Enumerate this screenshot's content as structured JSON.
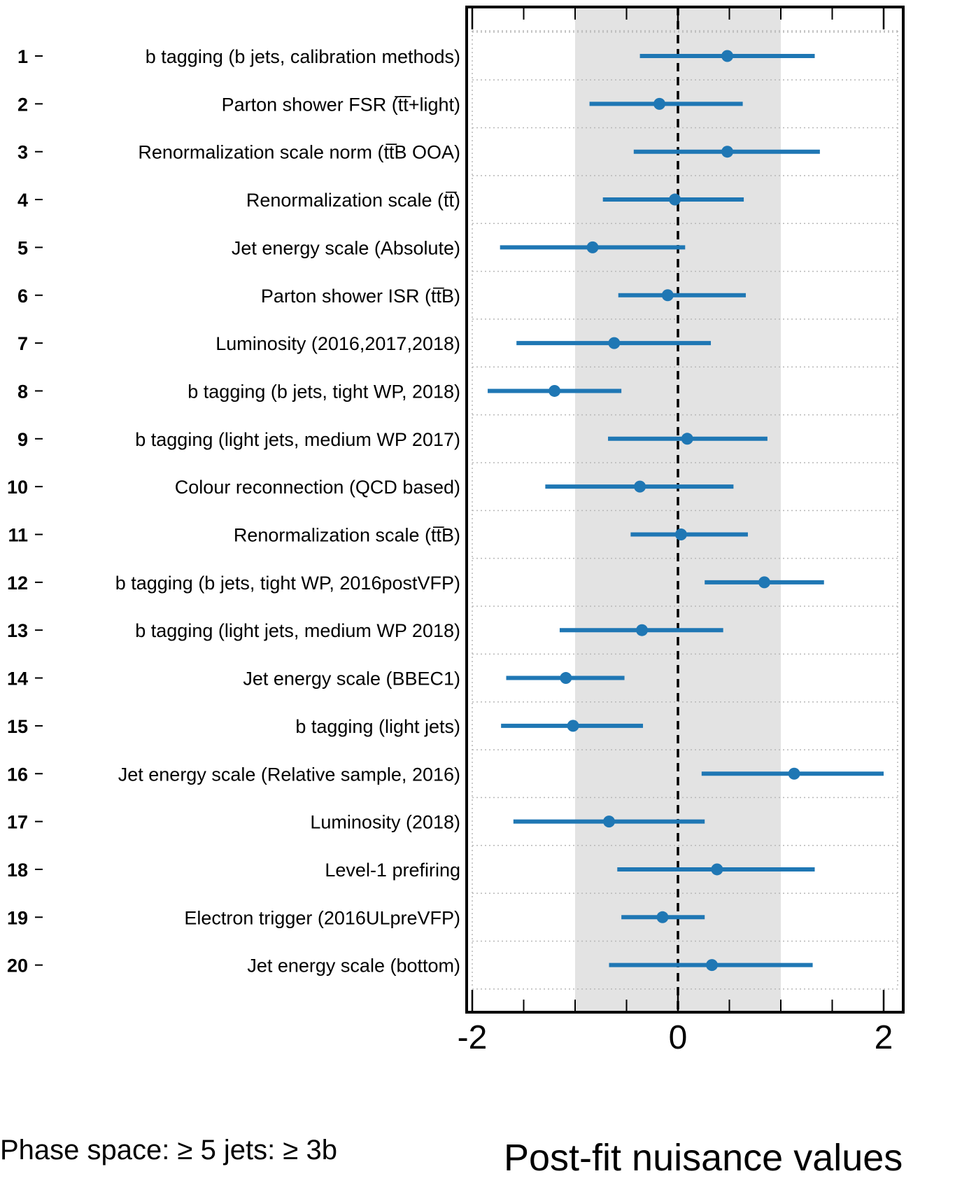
{
  "chart_data": {
    "type": "scatter",
    "title": "",
    "xlabel": "Post-fit nuisance values",
    "ylabel": "",
    "xlim": [
      -2.06,
      2.2
    ],
    "xticks": [
      -2,
      0,
      2
    ],
    "xtick_labels": [
      "-2",
      "0",
      "2"
    ],
    "grid": true,
    "band_1sigma": [
      -1,
      1
    ],
    "reference_line": 0,
    "annotation": "Phase space:  ≥ 5 jets:  ≥ 3b",
    "colors": {
      "points": "#1f77b4",
      "band": "#e3e3e3",
      "frame": "#000000"
    },
    "ranks": [
      "1",
      "2",
      "3",
      "4",
      "5",
      "6",
      "7",
      "8",
      "9",
      "10",
      "11",
      "12",
      "13",
      "14",
      "15",
      "16",
      "17",
      "18",
      "19",
      "20"
    ],
    "labels": [
      "b tagging (b jets, calibration methods)",
      "Parton shower FSR (t̅t̅+light)",
      "Renormalization scale norm (tt̅B OOA)",
      "Renormalization scale (tt̅)",
      "Jet energy scale (Absolute)",
      "Parton shower ISR (tt̅B)",
      "Luminosity (2016,2017,2018)",
      "b tagging (b jets, tight WP, 2018)",
      "b tagging (light jets, medium WP 2017)",
      "Colour reconnection (QCD based)",
      "Renormalization scale (tt̅B)",
      "b tagging (b jets, tight WP, 2016postVFP)",
      "b tagging (light jets, medium WP 2018)",
      "Jet energy scale (BBEC1)",
      "b tagging (light jets)",
      "Jet energy scale (Relative sample, 2016)",
      "Luminosity (2018)",
      "Level-1 prefiring",
      "Electron trigger (2016ULpreVFP)",
      "Jet energy scale (bottom)"
    ],
    "series": [
      {
        "values": [
          0.48,
          -0.18,
          0.48,
          -0.03,
          -0.83,
          -0.1,
          -0.62,
          -1.2,
          0.09,
          -0.37,
          0.03,
          0.84,
          -0.35,
          -1.09,
          -1.02,
          1.13,
          -0.67,
          0.38,
          -0.15,
          0.33
        ],
        "err_low": [
          -0.37,
          -0.86,
          -0.43,
          -0.73,
          -1.73,
          -0.58,
          -1.57,
          -1.85,
          -0.68,
          -1.29,
          -0.46,
          0.26,
          -1.15,
          -1.67,
          -1.72,
          0.23,
          -1.6,
          -0.59,
          -0.55,
          -0.67
        ],
        "err_high": [
          1.33,
          0.63,
          1.38,
          0.64,
          0.07,
          0.66,
          0.32,
          -0.55,
          0.87,
          0.54,
          0.68,
          1.42,
          0.44,
          -0.52,
          -0.34,
          2.0,
          0.26,
          1.33,
          0.26,
          1.31
        ]
      }
    ]
  }
}
